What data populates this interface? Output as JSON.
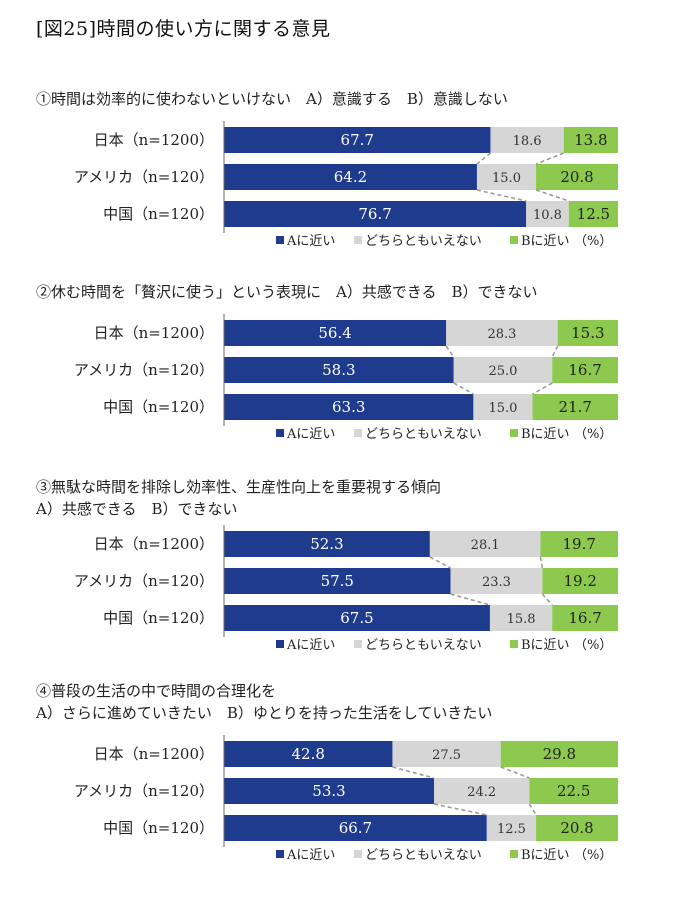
{
  "page_title": "[図25]時間の使い方に関する意見",
  "legend": {
    "a_label": "Aに近い",
    "mid_label": "どちらともいえない",
    "b_label": "Bに近い",
    "unit": "（%）"
  },
  "colors": {
    "a": "#1f3b8e",
    "mid": "#d6d6d6",
    "b": "#8cc94e",
    "connector": "#9a9a9a"
  },
  "chart_data": [
    {
      "type": "bar",
      "stacked": true,
      "orientation": "horizontal",
      "title_lines": [
        "①時間は効率的に使わないといけない　A）意識する　B）意識しない"
      ],
      "categories": [
        "日本（n=1200）",
        "アメリカ（n=120）",
        "中国（n=120）"
      ],
      "series": [
        {
          "name": "Aに近い",
          "values": [
            67.7,
            64.2,
            76.7
          ]
        },
        {
          "name": "どちらともいえない",
          "values": [
            18.6,
            15.0,
            10.8
          ]
        },
        {
          "name": "Bに近い",
          "values": [
            13.8,
            20.8,
            12.5
          ]
        }
      ],
      "xlim": [
        0,
        100
      ],
      "legend_position": "bottom-right"
    },
    {
      "type": "bar",
      "stacked": true,
      "orientation": "horizontal",
      "title_lines": [
        "②休む時間を「贅沢に使う」という表現に　A）共感できる　B）できない"
      ],
      "categories": [
        "日本（n=1200）",
        "アメリカ（n=120）",
        "中国（n=120）"
      ],
      "series": [
        {
          "name": "Aに近い",
          "values": [
            56.4,
            58.3,
            63.3
          ]
        },
        {
          "name": "どちらともいえない",
          "values": [
            28.3,
            25.0,
            15.0
          ]
        },
        {
          "name": "Bに近い",
          "values": [
            15.3,
            16.7,
            21.7
          ]
        }
      ],
      "xlim": [
        0,
        100
      ],
      "legend_position": "bottom-right"
    },
    {
      "type": "bar",
      "stacked": true,
      "orientation": "horizontal",
      "title_lines": [
        "③無駄な時間を排除し効率性、生産性向上を重要視する傾向",
        "A）共感できる　B）できない"
      ],
      "categories": [
        "日本（n=1200）",
        "アメリカ（n=120）",
        "中国（n=120）"
      ],
      "series": [
        {
          "name": "Aに近い",
          "values": [
            52.3,
            57.5,
            67.5
          ]
        },
        {
          "name": "どちらともいえない",
          "values": [
            28.1,
            23.3,
            15.8
          ]
        },
        {
          "name": "Bに近い",
          "values": [
            19.7,
            19.2,
            16.7
          ]
        }
      ],
      "xlim": [
        0,
        100
      ],
      "legend_position": "bottom-right"
    },
    {
      "type": "bar",
      "stacked": true,
      "orientation": "horizontal",
      "title_lines": [
        "④普段の生活の中で時間の合理化を",
        "A）さらに進めていきたい　B）ゆとりを持った生活をしていきたい"
      ],
      "categories": [
        "日本（n=1200）",
        "アメリカ（n=120）",
        "中国（n=120）"
      ],
      "series": [
        {
          "name": "Aに近い",
          "values": [
            42.8,
            53.3,
            66.7
          ]
        },
        {
          "name": "どちらともいえない",
          "values": [
            27.5,
            24.2,
            12.5
          ]
        },
        {
          "name": "Bに近い",
          "values": [
            29.8,
            22.5,
            20.8
          ]
        }
      ],
      "xlim": [
        0,
        100
      ],
      "legend_position": "bottom-right"
    }
  ]
}
